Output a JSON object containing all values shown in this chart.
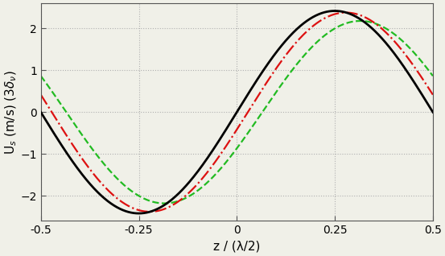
{
  "xlim": [
    -0.5,
    0.5
  ],
  "ylim": [
    -2.6,
    2.6
  ],
  "xticks": [
    -0.5,
    -0.25,
    0,
    0.25,
    0.5
  ],
  "xtick_labels": [
    "-0.5",
    "-0.25",
    "0",
    "0.25",
    "0.5"
  ],
  "yticks": [
    -2,
    -1,
    0,
    1,
    2
  ],
  "xlabel": "z / (λ/2)",
  "ylabel": "U$_s$ (m/s) (3$\\delta_\\nu$)",
  "background_color": "#f0f0e8",
  "grid_color": "#b0b0b0",
  "black_line": {
    "color": "#000000",
    "linestyle": "solid",
    "linewidth": 2.0,
    "amplitude": 2.42,
    "phase": 0.0
  },
  "red_line": {
    "color": "#dd1111",
    "linestyle": "dashdot",
    "linewidth": 1.6,
    "amplitude": 2.38,
    "phase": 0.028
  },
  "green_line": {
    "color": "#22bb22",
    "linestyle": "dashed",
    "linewidth": 1.6,
    "amplitude": 2.18,
    "phase": 0.065
  },
  "spine_color": "#555555",
  "tick_fontsize": 10,
  "label_fontsize": 11
}
